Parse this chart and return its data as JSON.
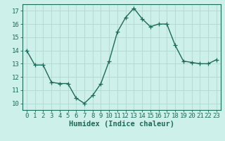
{
  "x": [
    0,
    1,
    2,
    3,
    4,
    5,
    6,
    7,
    8,
    9,
    10,
    11,
    12,
    13,
    14,
    15,
    16,
    17,
    18,
    19,
    20,
    21,
    22,
    23
  ],
  "y": [
    14.0,
    12.9,
    12.9,
    11.6,
    11.5,
    11.5,
    10.4,
    10.0,
    10.6,
    11.5,
    13.2,
    15.4,
    16.5,
    17.2,
    16.4,
    15.8,
    16.0,
    16.0,
    14.4,
    13.2,
    13.1,
    13.0,
    13.0,
    13.3
  ],
  "line_color": "#1a6b5a",
  "marker": "+",
  "markersize": 4,
  "linewidth": 1.0,
  "bg_color": "#cef0ea",
  "grid_color": "#b0d8d0",
  "xlabel": "Humidex (Indice chaleur)",
  "xlabel_fontsize": 7.5,
  "xtick_labels": [
    "0",
    "1",
    "2",
    "3",
    "4",
    "5",
    "6",
    "7",
    "8",
    "9",
    "10",
    "11",
    "12",
    "13",
    "14",
    "15",
    "16",
    "17",
    "18",
    "19",
    "20",
    "21",
    "22",
    "23"
  ],
  "ytick_values": [
    10,
    11,
    12,
    13,
    14,
    15,
    16,
    17
  ],
  "ylim": [
    9.5,
    17.5
  ],
  "xlim": [
    -0.5,
    23.5
  ],
  "tick_fontsize": 6.5,
  "xlabel_fontweight": "bold"
}
